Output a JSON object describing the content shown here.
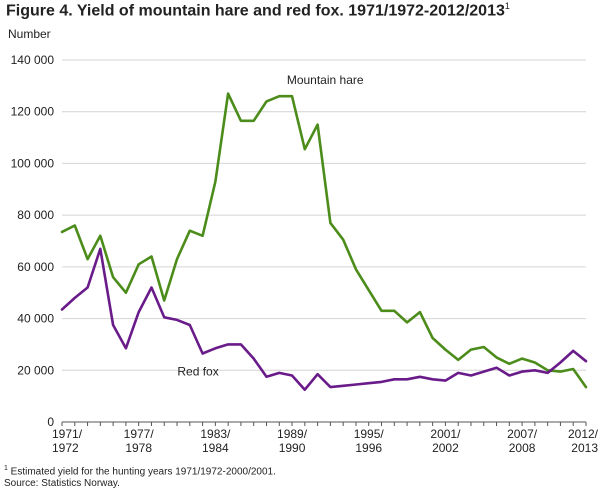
{
  "title": {
    "text": "Figure 4. Yield of mountain hare and red fox. 1971/1972-2012/2013",
    "sup": "1"
  },
  "footnote": {
    "sup": "1",
    "text": " Estimated yield for the hunting years 1971/1972-2000/2001.",
    "source": "Source: Statistics Norway."
  },
  "chart_data": {
    "type": "line",
    "ylabel": "Number",
    "ylim": [
      0,
      140000
    ],
    "yticks": [
      0,
      20000,
      40000,
      60000,
      80000,
      100000,
      120000,
      140000
    ],
    "ytick_labels": [
      "0",
      "20 000",
      "40 000",
      "60 000",
      "80 000",
      "100 000",
      "120 000",
      "140 000"
    ],
    "grid": true,
    "x": [
      "1971/1972",
      "1972/1973",
      "1973/1974",
      "1974/1975",
      "1975/1976",
      "1976/1977",
      "1977/1978",
      "1978/1979",
      "1979/1980",
      "1980/1981",
      "1981/1982",
      "1982/1983",
      "1983/1984",
      "1984/1985",
      "1985/1986",
      "1986/1987",
      "1987/1988",
      "1988/1989",
      "1989/1990",
      "1990/1991",
      "1991/1992",
      "1992/1993",
      "1993/1994",
      "1994/1995",
      "1995/1996",
      "1996/1997",
      "1997/1998",
      "1998/1999",
      "1999/2000",
      "2000/2001",
      "2001/2002",
      "2002/2003",
      "2003/2004",
      "2004/2005",
      "2005/2006",
      "2006/2007",
      "2007/2008",
      "2008/2009",
      "2009/2010",
      "2010/2011",
      "2011/2012",
      "2012/2013"
    ],
    "xtick_labels": [
      {
        "index": 0,
        "line1": "1971/",
        "line2": "1972"
      },
      {
        "index": 6,
        "line1": "1977/",
        "line2": "1978"
      },
      {
        "index": 12,
        "line1": "1983/",
        "line2": "1984"
      },
      {
        "index": 18,
        "line1": "1989/",
        "line2": "1990"
      },
      {
        "index": 24,
        "line1": "1995/",
        "line2": "1996"
      },
      {
        "index": 30,
        "line1": "2001/",
        "line2": "2002"
      },
      {
        "index": 36,
        "line1": "2007/",
        "line2": "2008"
      },
      {
        "index": 41,
        "line1": "2012/",
        "line2": "2013"
      }
    ],
    "series": [
      {
        "name": "Mountain hare",
        "color": "#4c8c1a",
        "label_index": 22,
        "values": [
          73500,
          76000,
          63000,
          72000,
          56000,
          50000,
          61000,
          64000,
          47000,
          63000,
          74000,
          72000,
          93000,
          127000,
          116500,
          116500,
          124000,
          126000,
          126000,
          105500,
          115000,
          77000,
          70500,
          59000,
          51000,
          43000,
          43000,
          38500,
          42500,
          32500,
          28000,
          24000,
          28000,
          29000,
          25000,
          22500,
          24500,
          23000,
          20000,
          19500,
          20500,
          13500
        ]
      },
      {
        "name": "Red fox",
        "color": "#6a1b8a",
        "label_index": 12,
        "values": [
          43500,
          48000,
          52000,
          67000,
          37500,
          28500,
          42500,
          52000,
          40500,
          39500,
          37500,
          26500,
          28500,
          30000,
          30000,
          24500,
          17500,
          19000,
          18000,
          12500,
          18500,
          13500,
          14000,
          14500,
          15000,
          15500,
          16500,
          16500,
          17500,
          16500,
          16000,
          19000,
          18000,
          19500,
          21000,
          18000,
          19500,
          20000,
          19000,
          23000,
          27500,
          23500
        ]
      }
    ]
  }
}
